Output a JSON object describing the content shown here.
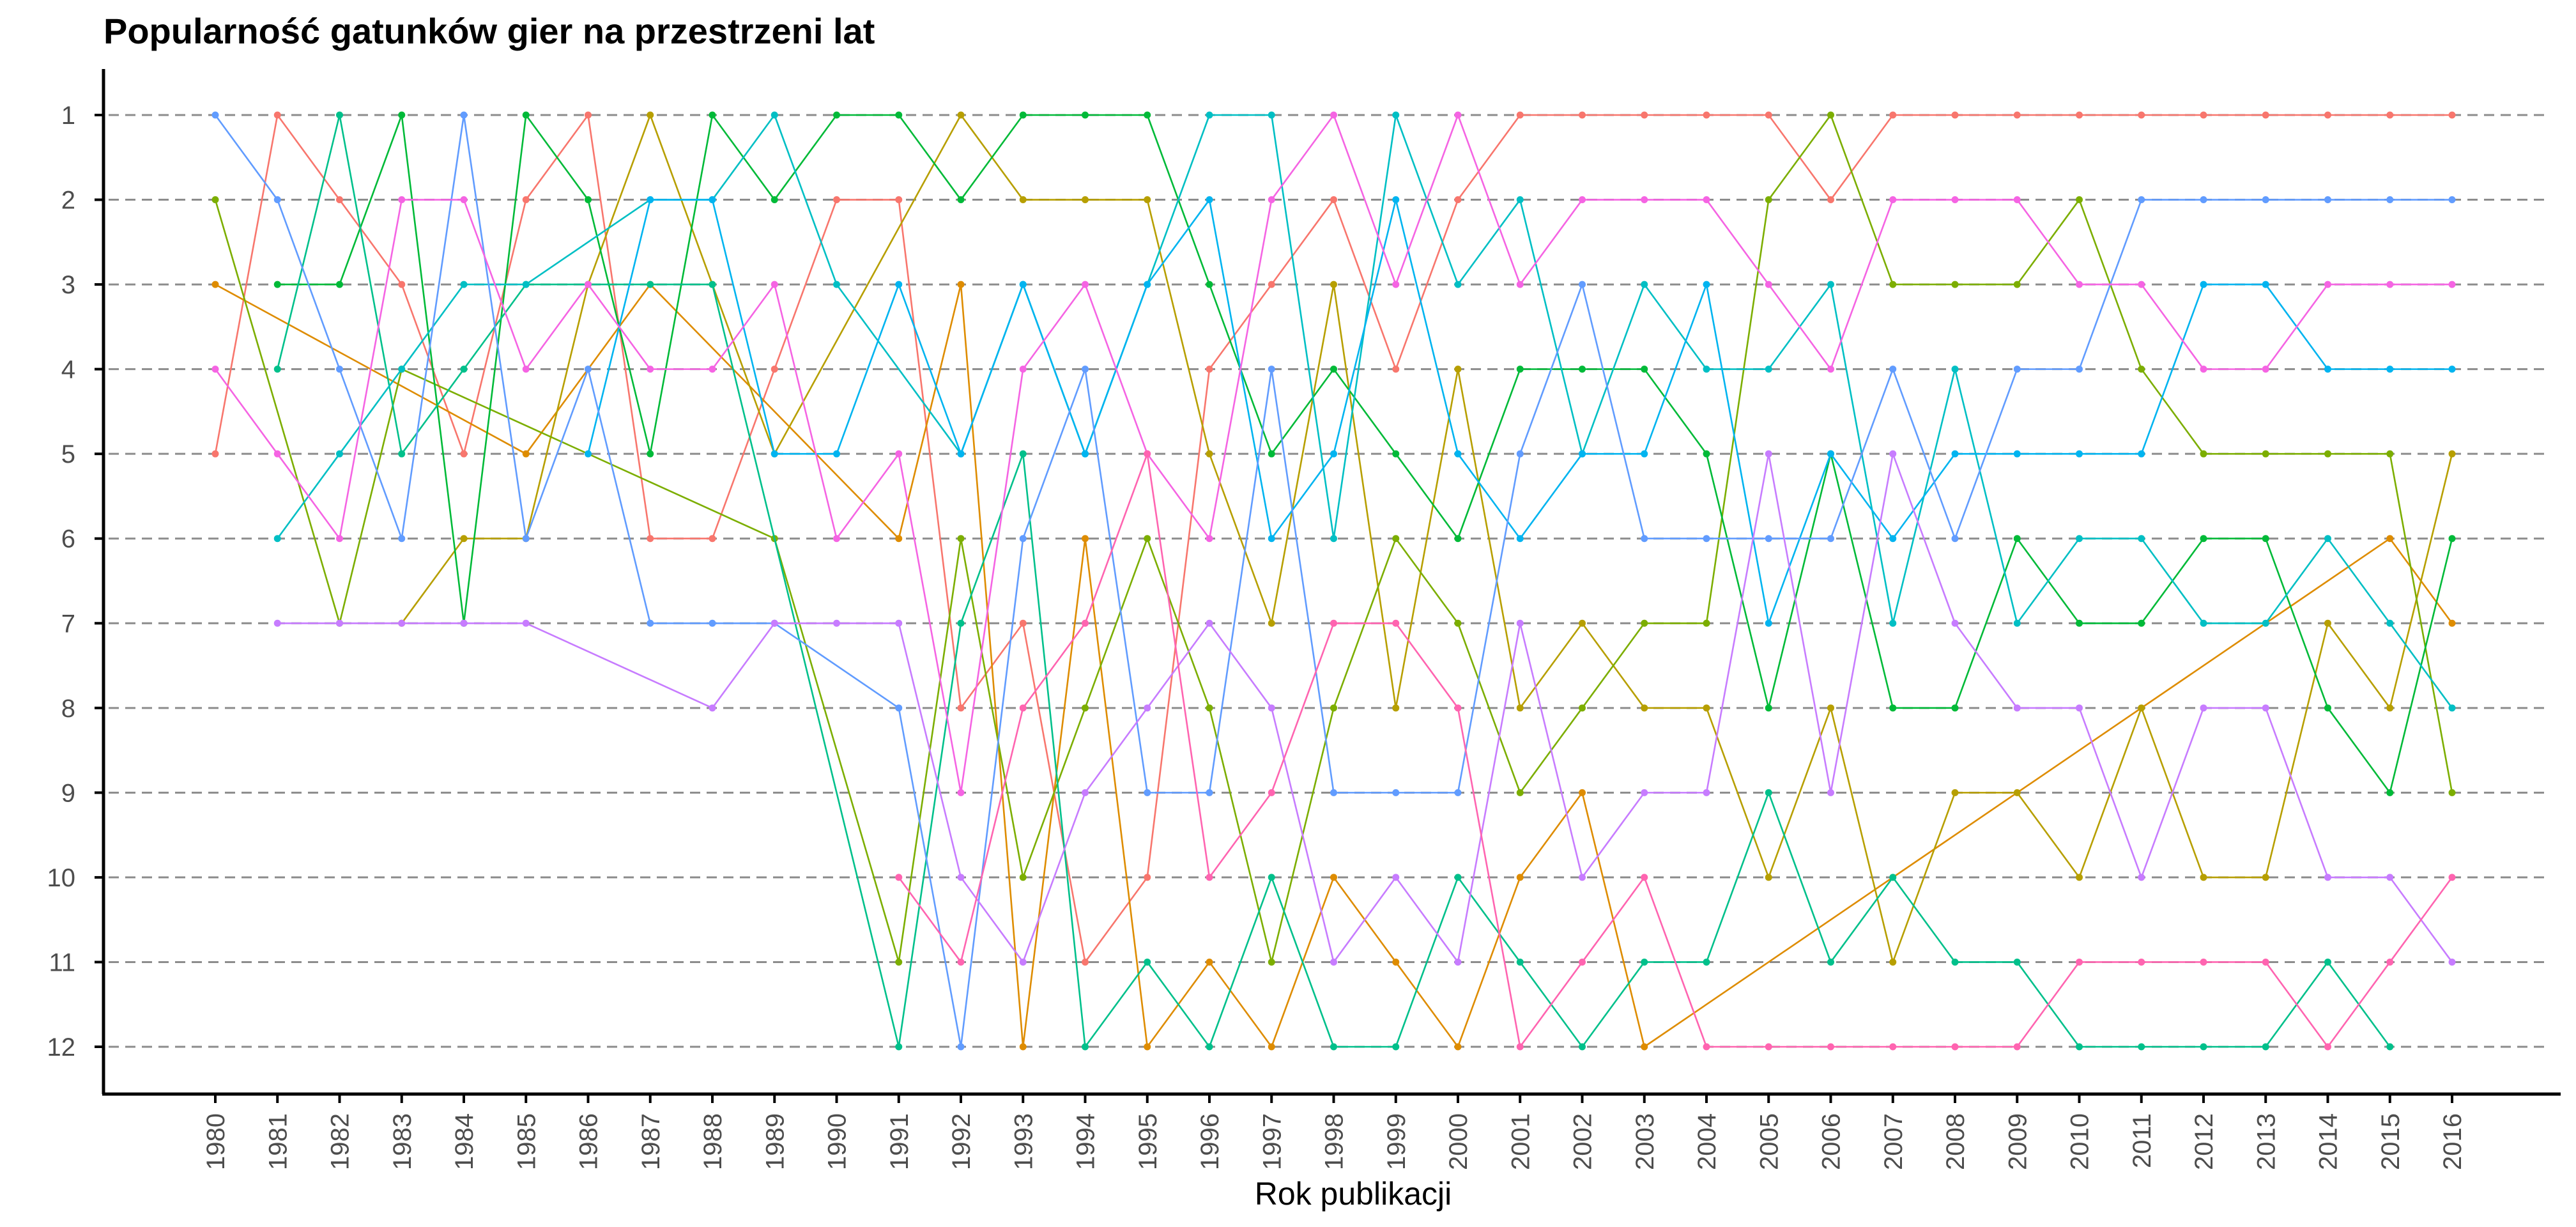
{
  "chart_data": {
    "type": "line",
    "title": "Popularność gatunków gier na przestrzeni lat",
    "xlabel": "Rok publikacji",
    "ylabel": "",
    "x": [
      1980,
      1981,
      1982,
      1983,
      1984,
      1985,
      1986,
      1987,
      1988,
      1989,
      1990,
      1991,
      1992,
      1993,
      1994,
      1995,
      1996,
      1997,
      1998,
      1999,
      2000,
      2001,
      2002,
      2003,
      2004,
      2005,
      2006,
      2007,
      2008,
      2009,
      2010,
      2011,
      2012,
      2013,
      2014,
      2015,
      2016
    ],
    "y_ticks": [
      1,
      2,
      3,
      4,
      5,
      6,
      7,
      8,
      9,
      10,
      11,
      12
    ],
    "ylim": [
      12,
      1
    ],
    "y_reversed": true,
    "grid": "horizontal dashed",
    "legend": "none",
    "series": [
      {
        "color": "#f8766d",
        "values": [
          5,
          1,
          2,
          3,
          5,
          2,
          1,
          6,
          6,
          4,
          2,
          2,
          8,
          7,
          11,
          10,
          4,
          3,
          2,
          4,
          2,
          1,
          1,
          1,
          1,
          1,
          2,
          1,
          1,
          1,
          1,
          1,
          1,
          1,
          1,
          1,
          1
        ]
      },
      {
        "color": "#de8c00",
        "values": [
          3,
          null,
          null,
          null,
          null,
          5,
          null,
          3,
          null,
          null,
          null,
          6,
          3,
          12,
          6,
          12,
          11,
          12,
          10,
          11,
          12,
          10,
          9,
          12,
          null,
          null,
          null,
          null,
          null,
          null,
          null,
          null,
          null,
          null,
          null,
          6,
          7
        ]
      },
      {
        "color": "#b79f00",
        "values": [
          null,
          null,
          null,
          7,
          6,
          6,
          3,
          1,
          3,
          5,
          null,
          null,
          1,
          2,
          2,
          2,
          5,
          7,
          3,
          8,
          4,
          8,
          7,
          8,
          8,
          10,
          8,
          11,
          9,
          9,
          10,
          8,
          10,
          10,
          7,
          8,
          5
        ]
      },
      {
        "color": "#7cae00",
        "values": [
          2,
          null,
          7,
          4,
          null,
          null,
          null,
          null,
          null,
          6,
          null,
          11,
          6,
          10,
          8,
          6,
          8,
          11,
          8,
          6,
          7,
          9,
          8,
          7,
          7,
          2,
          1,
          3,
          3,
          3,
          2,
          4,
          5,
          5,
          5,
          5,
          9
        ]
      },
      {
        "color": "#00ba38",
        "values": [
          null,
          3,
          3,
          1,
          7,
          1,
          2,
          5,
          1,
          2,
          1,
          1,
          2,
          1,
          1,
          1,
          3,
          5,
          4,
          5,
          6,
          4,
          4,
          4,
          5,
          8,
          5,
          8,
          8,
          6,
          7,
          7,
          6,
          6,
          8,
          9,
          6
        ]
      },
      {
        "color": "#00c08b",
        "values": [
          null,
          4,
          1,
          5,
          4,
          3,
          3,
          3,
          3,
          null,
          null,
          12,
          7,
          5,
          12,
          11,
          12,
          10,
          12,
          12,
          10,
          11,
          12,
          11,
          11,
          9,
          11,
          10,
          11,
          11,
          12,
          12,
          12,
          12,
          11,
          12,
          null
        ]
      },
      {
        "color": "#00bfc4",
        "values": [
          null,
          6,
          5,
          4,
          3,
          3,
          null,
          2,
          2,
          1,
          3,
          null,
          5,
          3,
          5,
          3,
          1,
          1,
          6,
          1,
          3,
          2,
          5,
          3,
          4,
          4,
          3,
          7,
          4,
          7,
          6,
          6,
          7,
          7,
          6,
          7,
          8
        ]
      },
      {
        "color": "#00b4f0",
        "values": [
          null,
          null,
          null,
          null,
          null,
          null,
          5,
          2,
          2,
          5,
          5,
          3,
          5,
          3,
          5,
          3,
          2,
          6,
          5,
          2,
          5,
          6,
          5,
          5,
          3,
          7,
          5,
          6,
          5,
          5,
          5,
          5,
          3,
          3,
          4,
          4,
          4
        ]
      },
      {
        "color": "#619cff",
        "values": [
          1,
          2,
          4,
          6,
          1,
          6,
          4,
          7,
          7,
          7,
          null,
          8,
          12,
          6,
          4,
          9,
          9,
          4,
          9,
          9,
          9,
          5,
          3,
          6,
          6,
          6,
          6,
          4,
          6,
          4,
          4,
          2,
          2,
          2,
          2,
          2,
          2
        ]
      },
      {
        "color": "#c77cff",
        "values": [
          null,
          7,
          7,
          7,
          7,
          7,
          null,
          null,
          8,
          7,
          7,
          7,
          10,
          11,
          9,
          8,
          7,
          8,
          11,
          10,
          11,
          7,
          10,
          9,
          9,
          5,
          9,
          5,
          7,
          8,
          8,
          10,
          8,
          8,
          10,
          10,
          11
        ]
      },
      {
        "color": "#f564e3",
        "values": [
          4,
          5,
          6,
          2,
          2,
          4,
          3,
          4,
          4,
          3,
          6,
          5,
          9,
          4,
          3,
          5,
          6,
          2,
          1,
          3,
          1,
          3,
          2,
          2,
          2,
          3,
          4,
          2,
          2,
          2,
          3,
          3,
          4,
          4,
          3,
          3,
          3
        ]
      },
      {
        "color": "#ff64b0",
        "values": [
          null,
          null,
          null,
          null,
          null,
          null,
          null,
          null,
          null,
          null,
          null,
          10,
          11,
          8,
          7,
          5,
          10,
          9,
          7,
          7,
          8,
          12,
          11,
          10,
          12,
          12,
          12,
          12,
          12,
          12,
          11,
          11,
          11,
          11,
          12,
          11,
          10
        ]
      }
    ]
  }
}
